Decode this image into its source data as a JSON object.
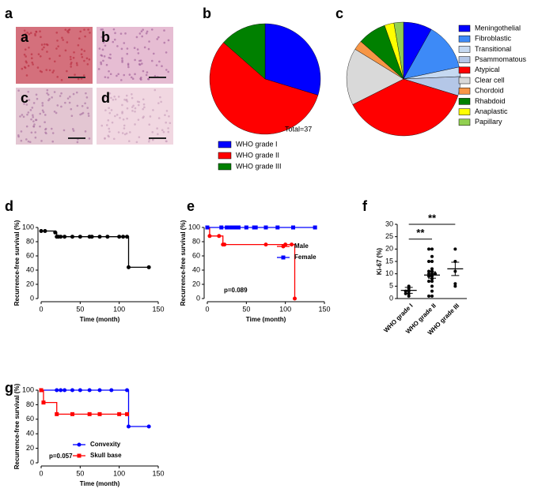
{
  "chart_data": [
    {
      "type": "image",
      "panel_label": "a",
      "tiles": [
        "a",
        "b",
        "c",
        "d"
      ]
    },
    {
      "type": "pie",
      "panel_label": "b",
      "annotation": "Total=37",
      "categories": [
        "WHO grade I",
        "WHO grade II",
        "WHO grade III"
      ],
      "values": [
        11,
        21,
        5
      ],
      "colors": [
        "#0000ff",
        "#ff0000",
        "#008000"
      ]
    },
    {
      "type": "pie",
      "panel_label": "c",
      "categories": [
        "Meningothelial",
        "Fibroblastic",
        "Transitional",
        "Psammomatous",
        "Atypical",
        "Clear cell",
        "Chordoid",
        "Rhabdoid",
        "Anaplastic",
        "Papillary"
      ],
      "values": [
        3,
        5,
        1,
        2,
        14,
        6,
        1,
        3,
        1,
        1
      ],
      "colors": [
        "#0000ff",
        "#3d8af7",
        "#c6d9f1",
        "#b4c7e7",
        "#ff0000",
        "#d9d9d9",
        "#f79646",
        "#008000",
        "#ffff00",
        "#92d050"
      ]
    },
    {
      "type": "km",
      "panel_label": "d",
      "x_label": "Time (month)",
      "y_label": "Recurrence-free survival (%)",
      "xlim": [
        0,
        150
      ],
      "xticks": [
        0,
        50,
        100,
        150
      ],
      "ylim": [
        0,
        100
      ],
      "yticks": [
        0,
        20,
        40,
        60,
        80,
        100
      ],
      "series": [
        {
          "color": "#000000",
          "marker": "circle",
          "x": [
            0,
            5,
            18,
            20,
            22,
            25,
            30,
            40,
            50,
            62,
            65,
            75,
            85,
            100,
            105,
            110,
            112,
            138
          ],
          "values": [
            95,
            95,
            93,
            87,
            87,
            87,
            87,
            87,
            87,
            87,
            87,
            87,
            87,
            87,
            87,
            87,
            44,
            44
          ]
        }
      ]
    },
    {
      "type": "km",
      "panel_label": "e",
      "x_label": "Time (month)",
      "y_label": "Recurrence-free survival (%)",
      "annotation": "p=0.089",
      "xlim": [
        0,
        150
      ],
      "xticks": [
        0,
        50,
        100,
        150
      ],
      "ylim": [
        0,
        100
      ],
      "yticks": [
        0,
        20,
        40,
        60,
        80,
        100
      ],
      "series": [
        {
          "name": "Male",
          "color": "#ff0000",
          "marker": "circle",
          "x": [
            0,
            3,
            15,
            20,
            22,
            75,
            100,
            108,
            112
          ],
          "values": [
            100,
            88,
            88,
            76,
            76,
            76,
            76,
            76,
            0
          ]
        },
        {
          "name": "Female",
          "color": "#0000ff",
          "marker": "square",
          "x": [
            0,
            18,
            25,
            30,
            35,
            40,
            50,
            60,
            62,
            75,
            90,
            110,
            138
          ],
          "values": [
            100,
            100,
            100,
            100,
            100,
            100,
            100,
            100,
            100,
            100,
            100,
            100,
            100
          ]
        }
      ]
    },
    {
      "type": "dot",
      "panel_label": "f",
      "y_label": "Ki-67 (%)",
      "ylim": [
        0,
        30
      ],
      "yticks": [
        0,
        5,
        10,
        15,
        20,
        25,
        30
      ],
      "categories": [
        "WHO grade I",
        "WHO grade II",
        "WHO grade III"
      ],
      "points": [
        [
          5,
          3,
          2,
          1,
          2,
          3,
          4
        ],
        [
          20,
          20,
          17,
          15,
          15,
          12,
          11,
          11,
          10,
          10,
          10,
          9,
          9,
          8,
          7,
          7,
          5,
          3,
          1,
          1
        ],
        [
          20,
          15,
          11,
          6,
          5
        ]
      ],
      "means": [
        3.3,
        9.5,
        12
      ],
      "sems": [
        1.2,
        1.3,
        2.7
      ],
      "annotations": [
        "**",
        "**"
      ]
    },
    {
      "type": "km",
      "panel_label": "g",
      "x_label": "Time (month)",
      "y_label": "Recurrence-free survival (%)",
      "annotation": "p=0.057",
      "xlim": [
        0,
        150
      ],
      "xticks": [
        0,
        50,
        100,
        150
      ],
      "ylim": [
        0,
        100
      ],
      "yticks": [
        0,
        20,
        40,
        60,
        80,
        100
      ],
      "series": [
        {
          "name": "Convexity",
          "color": "#0000ff",
          "marker": "circle",
          "x": [
            0,
            20,
            25,
            30,
            40,
            50,
            62,
            75,
            90,
            110,
            112,
            138
          ],
          "values": [
            100,
            100,
            100,
            100,
            100,
            100,
            100,
            100,
            100,
            100,
            50,
            50
          ]
        },
        {
          "name": "Skull base",
          "color": "#ff0000",
          "marker": "square",
          "x": [
            0,
            3,
            20,
            40,
            62,
            75,
            100,
            110
          ],
          "values": [
            100,
            83,
            67,
            67,
            67,
            67,
            67,
            67
          ]
        }
      ]
    }
  ]
}
